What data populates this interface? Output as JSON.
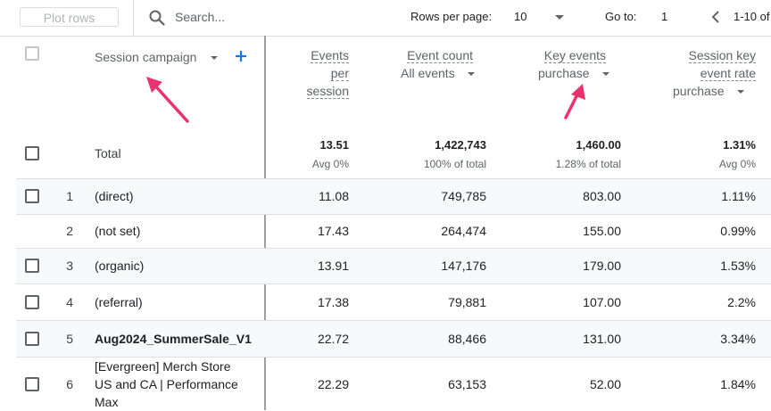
{
  "toolbar": {
    "plot_rows_label": "Plot rows",
    "search_placeholder": "Search...",
    "rows_per_page_label": "Rows per page:",
    "rows_per_page_value": "10",
    "go_to_label": "Go to:",
    "go_to_value": "1",
    "range_label": "1-10 of"
  },
  "header": {
    "dimension_label": "Session campaign",
    "columns": [
      {
        "title_lines": [
          "Events",
          "per",
          "session"
        ]
      },
      {
        "title_lines": [
          "Event count"
        ],
        "selector": "All events"
      },
      {
        "title_lines": [
          "Key events"
        ],
        "selector": "purchase"
      },
      {
        "title_lines": [
          "Session key",
          "event rate"
        ],
        "selector": "purchase"
      }
    ]
  },
  "total": {
    "label": "Total",
    "values": [
      "13.51",
      "1,422,743",
      "1,460.00",
      "1.31%"
    ],
    "subs": [
      "Avg 0%",
      "100% of total",
      "1.28% of total",
      "Avg 0%"
    ]
  },
  "rows": [
    {
      "index": "1",
      "name_lines": [
        "(direct)"
      ],
      "values": [
        "11.08",
        "749,785",
        "803.00",
        "1.11%"
      ]
    },
    {
      "index": "2",
      "name_lines": [
        "(not set)"
      ],
      "values": [
        "17.43",
        "264,474",
        "155.00",
        "0.99%"
      ]
    },
    {
      "index": "3",
      "name_lines": [
        "(organic)"
      ],
      "values": [
        "13.91",
        "147,176",
        "179.00",
        "1.53%"
      ]
    },
    {
      "index": "4",
      "name_lines": [
        "(referral)"
      ],
      "values": [
        "17.38",
        "79,881",
        "107.00",
        "2.2%"
      ]
    },
    {
      "index": "5",
      "name_lines": [
        "Aug2024_SummerSale_V1"
      ],
      "values": [
        "22.72",
        "88,466",
        "131.00",
        "3.34%"
      ]
    },
    {
      "index": "6",
      "name_lines": [
        "[Evergreen] Merch Store",
        "US and CA | Performance",
        "Max"
      ],
      "values": [
        "22.29",
        "63,153",
        "52.00",
        "1.84%"
      ]
    }
  ],
  "colors": {
    "accent": "#1a73e8",
    "annotation_arrow": "#e8336d",
    "grid_line": "#dadce0"
  }
}
